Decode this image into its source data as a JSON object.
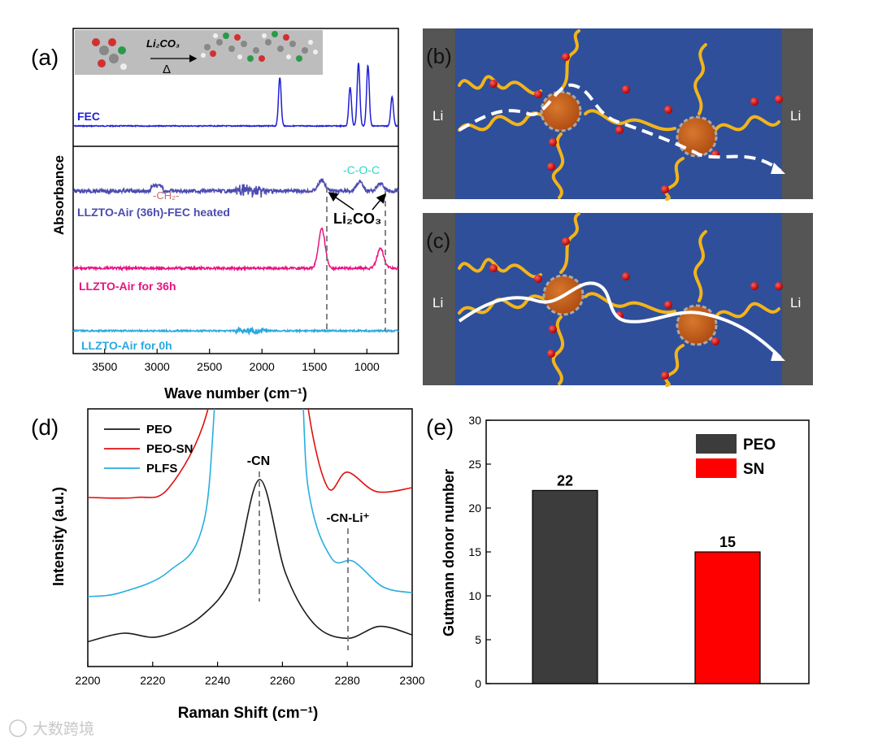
{
  "panels": {
    "a": "(a)",
    "b": "(b)",
    "c": "(c)",
    "d": "(d)",
    "e": "(e)"
  },
  "colors": {
    "fec": "#1f1fd6",
    "fec_heated": "#4b4bb0",
    "air36": "#e8127f",
    "air0": "#2aa8e0",
    "peo": "#1a1a1a",
    "peo_sn": "#e01010",
    "plfs": "#27aee0",
    "bar_peo": "#3c3c3c",
    "bar_sn": "#ff0000",
    "schematic_bg": "#2f4f9a",
    "electrode": "#555555"
  },
  "chart_data": [
    {
      "id": "a",
      "type": "line",
      "title": "",
      "xlabel": "Wave number (cm⁻¹)",
      "ylabel": "Absorbance",
      "xlim": [
        3800,
        700
      ],
      "xticks": [
        3500,
        3000,
        2500,
        2000,
        1500,
        1000
      ],
      "series": [
        {
          "name": "FEC",
          "label": "FEC",
          "peaks": [
            [
              1830,
              1.0
            ],
            [
              1160,
              0.8
            ],
            [
              1080,
              1.3
            ],
            [
              990,
              1.25
            ],
            [
              760,
              0.6
            ]
          ]
        },
        {
          "name": "LLZTO-Air (36h)-FEC heated",
          "label": "LLZTO-Air (36h)-FEC heated",
          "peaks": [
            [
              1430,
              0.3
            ],
            [
              1070,
              0.25
            ],
            [
              870,
              0.2
            ]
          ]
        },
        {
          "name": "LLZTO-Air for 36h",
          "label": "LLZTO-Air for 36h",
          "peaks": [
            [
              1430,
              1.0
            ],
            [
              870,
              0.5
            ]
          ]
        },
        {
          "name": "LLZTO-Air for 0h",
          "label": "LLZTO-Air for 0h",
          "peaks": []
        }
      ],
      "annotations": {
        "ch2": "-CH₂-",
        "coc": "-C-O-C",
        "li2co3": "Li₂CO₃",
        "inset_label": "Li₂CO₃",
        "inset_delta": "Δ"
      }
    },
    {
      "id": "d",
      "type": "line",
      "xlabel": "Raman Shift (cm⁻¹)",
      "ylabel": "Intensity (a.u.)",
      "xlim": [
        2200,
        2300
      ],
      "xticks": [
        2200,
        2220,
        2240,
        2260,
        2280,
        2300
      ],
      "legend": [
        "PEO",
        "PEO-SN",
        "PLFS"
      ],
      "annotations": {
        "cn": "-CN",
        "cnli": "-CN-Li⁺"
      },
      "series": [
        {
          "name": "PEO",
          "points": [
            [
              2200,
              0.05
            ],
            [
              2211,
              0.1
            ],
            [
              2222,
              0.08
            ],
            [
              2235,
              0.2
            ],
            [
              2245,
              0.45
            ],
            [
              2253,
              1.0
            ],
            [
              2261,
              0.45
            ],
            [
              2270,
              0.15
            ],
            [
              2280,
              0.07
            ],
            [
              2290,
              0.14
            ],
            [
              2300,
              0.09
            ]
          ]
        },
        {
          "name": "PEO-SN",
          "points": [
            [
              2200,
              0.45
            ],
            [
              2215,
              0.45
            ],
            [
              2225,
              0.5
            ],
            [
              2237,
              0.9
            ],
            [
              2242,
              1.6
            ],
            [
              2264,
              1.6
            ],
            [
              2268,
              0.9
            ],
            [
              2274,
              0.5
            ],
            [
              2280,
              0.58
            ],
            [
              2289,
              0.48
            ],
            [
              2300,
              0.5
            ]
          ]
        },
        {
          "name": "PLFS",
          "points": [
            [
              2200,
              0.15
            ],
            [
              2210,
              0.17
            ],
            [
              2225,
              0.28
            ],
            [
              2236,
              0.55
            ],
            [
              2243,
              1.6
            ],
            [
              2263,
              1.6
            ],
            [
              2268,
              0.7
            ],
            [
              2275,
              0.35
            ],
            [
              2282,
              0.33
            ],
            [
              2291,
              0.2
            ],
            [
              2300,
              0.17
            ]
          ]
        }
      ]
    },
    {
      "id": "e",
      "type": "bar",
      "ylabel": "Gutmann donor number",
      "categories": [
        "PEO",
        "SN"
      ],
      "values": [
        22,
        15
      ],
      "value_labels": [
        "22",
        "15"
      ],
      "ylim": [
        0,
        30
      ],
      "yticks": [
        0,
        5,
        10,
        15,
        20,
        25,
        30
      ],
      "legend": [
        "PEO",
        "SN"
      ]
    }
  ],
  "schematic": {
    "electrode_label": "Li"
  },
  "watermark": "大数跨境"
}
